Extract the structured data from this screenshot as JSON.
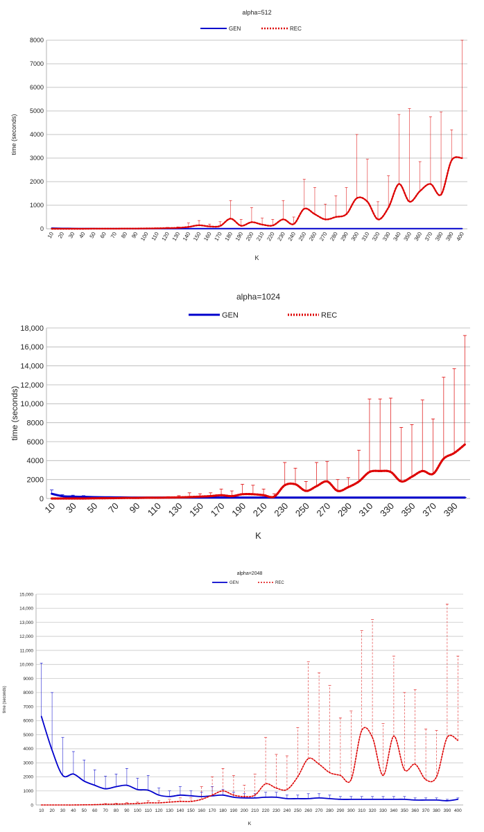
{
  "chart_data": [
    {
      "type": "line",
      "title": "alpha=512",
      "xlabel": "K",
      "ylabel": "time (seconds)",
      "categories": [
        10,
        20,
        30,
        40,
        50,
        60,
        70,
        80,
        90,
        100,
        110,
        120,
        130,
        140,
        150,
        160,
        170,
        180,
        190,
        200,
        210,
        220,
        230,
        240,
        250,
        260,
        270,
        280,
        290,
        300,
        310,
        320,
        330,
        340,
        350,
        360,
        370,
        380,
        390,
        400
      ],
      "ylim": [
        0,
        8000
      ],
      "yticks": [
        0,
        1000,
        2000,
        3000,
        4000,
        5000,
        6000,
        7000,
        8000
      ],
      "ytick_labels": [
        "0",
        "1000",
        "2000",
        "3000",
        "4000",
        "5000",
        "6000",
        "7000",
        "8000"
      ],
      "legend": "top-center",
      "grid": true,
      "series": [
        {
          "name": "GEN",
          "color": "#0000cc",
          "values": [
            30,
            20,
            15,
            10,
            10,
            8,
            8,
            8,
            8,
            8,
            8,
            8,
            8,
            8,
            8,
            8,
            8,
            8,
            8,
            8,
            8,
            8,
            8,
            8,
            8,
            8,
            8,
            8,
            8,
            8,
            8,
            8,
            8,
            8,
            8,
            8,
            8,
            8,
            8,
            8
          ]
        },
        {
          "name": "REC",
          "color": "#dd0000",
          "values": [
            0,
            0,
            0,
            0,
            5,
            5,
            5,
            10,
            10,
            15,
            20,
            30,
            40,
            80,
            150,
            100,
            120,
            430,
            130,
            280,
            180,
            140,
            400,
            200,
            850,
            620,
            400,
            500,
            620,
            1300,
            1150,
            400,
            900,
            1900,
            1150,
            1600,
            1900,
            1450,
            2900,
            3000
          ],
          "err_upper": [
            0,
            0,
            0,
            0,
            10,
            10,
            10,
            20,
            20,
            30,
            40,
            60,
            80,
            250,
            350,
            200,
            300,
            1200,
            400,
            900,
            450,
            400,
            1200,
            500,
            2100,
            1750,
            1050,
            1400,
            1750,
            4000,
            2950,
            1150,
            2250,
            4850,
            5100,
            2850,
            4750,
            4950,
            4200,
            8000
          ]
        }
      ]
    },
    {
      "type": "line",
      "title": "alpha=1024",
      "xlabel": "K",
      "ylabel": "time (seconds)",
      "categories": [
        10,
        20,
        30,
        40,
        50,
        60,
        70,
        80,
        90,
        100,
        110,
        120,
        130,
        140,
        150,
        160,
        170,
        180,
        190,
        200,
        210,
        220,
        230,
        240,
        250,
        260,
        270,
        280,
        290,
        300,
        310,
        320,
        330,
        340,
        350,
        360,
        370,
        380,
        390,
        400
      ],
      "tick_labels": [
        "10",
        "30",
        "50",
        "70",
        "90",
        "110",
        "130",
        "150",
        "170",
        "190",
        "210",
        "230",
        "250",
        "270",
        "290",
        "310",
        "330",
        "350",
        "370",
        "390"
      ],
      "ylim": [
        0,
        18000
      ],
      "yticks": [
        0,
        2000,
        4000,
        6000,
        8000,
        10000,
        12000,
        14000,
        16000,
        18000
      ],
      "ytick_labels": [
        "0",
        "2000",
        "4000",
        "6000",
        "8000",
        "10,000",
        "12,000",
        "14,000",
        "16,000",
        "18,000"
      ],
      "legend": "top-center",
      "grid": true,
      "series": [
        {
          "name": "GEN",
          "color": "#0000cc",
          "values": [
            500,
            250,
            200,
            180,
            150,
            130,
            120,
            110,
            100,
            100,
            100,
            100,
            100,
            100,
            100,
            100,
            100,
            100,
            100,
            100,
            100,
            100,
            100,
            100,
            100,
            100,
            100,
            100,
            100,
            100,
            100,
            100,
            100,
            100,
            100,
            100,
            100,
            100,
            100,
            100
          ],
          "err_upper": [
            900,
            400,
            350,
            300,
            200,
            150,
            130,
            120,
            110,
            110,
            110,
            110,
            110,
            110,
            110,
            110,
            110,
            110,
            110,
            110,
            110,
            110,
            110,
            110,
            110,
            110,
            110,
            110,
            110,
            110,
            110,
            110,
            110,
            110,
            110,
            110,
            110,
            110,
            110,
            110
          ]
        },
        {
          "name": "REC",
          "color": "#dd0000",
          "values": [
            0,
            0,
            0,
            0,
            20,
            30,
            40,
            60,
            60,
            80,
            80,
            100,
            120,
            150,
            200,
            250,
            350,
            250,
            450,
            450,
            350,
            200,
            1400,
            1500,
            800,
            1300,
            1800,
            800,
            1200,
            1800,
            2800,
            2900,
            2800,
            1800,
            2300,
            2900,
            2600,
            4200,
            4800,
            5700
          ],
          "err_upper": [
            0,
            0,
            0,
            0,
            40,
            60,
            80,
            120,
            120,
            160,
            160,
            200,
            300,
            600,
            500,
            600,
            1000,
            800,
            1500,
            1400,
            1000,
            500,
            3800,
            3200,
            1800,
            3800,
            3900,
            2000,
            2200,
            5100,
            10500,
            10500,
            10600,
            7500,
            7800,
            10400,
            8400,
            12800,
            13700,
            17200
          ]
        }
      ]
    },
    {
      "type": "line",
      "title": "alpha=2048",
      "xlabel": "K",
      "ylabel": "time (seconds)",
      "categories": [
        10,
        20,
        30,
        40,
        50,
        60,
        70,
        80,
        90,
        100,
        110,
        120,
        130,
        140,
        150,
        160,
        170,
        180,
        190,
        200,
        210,
        220,
        230,
        240,
        250,
        260,
        270,
        280,
        290,
        300,
        310,
        320,
        330,
        340,
        350,
        360,
        370,
        380,
        390,
        400
      ],
      "ylim": [
        0,
        15000
      ],
      "yticks": [
        0,
        1000,
        2000,
        3000,
        4000,
        5000,
        6000,
        7000,
        8000,
        9000,
        10000,
        11000,
        12000,
        13000,
        14000,
        15000
      ],
      "ytick_labels": [
        "0",
        "1000",
        "2000",
        "3000",
        "4000",
        "5000",
        "6000",
        "7000",
        "8000",
        "9000",
        "10,000",
        "11,000",
        "12,000",
        "13,000",
        "14,000",
        "15,000"
      ],
      "legend": "top-center",
      "grid": true,
      "series": [
        {
          "name": "GEN",
          "color": "#0000cc",
          "values": [
            6300,
            3900,
            2100,
            2200,
            1700,
            1400,
            1150,
            1300,
            1400,
            1100,
            1050,
            700,
            600,
            700,
            650,
            600,
            650,
            700,
            550,
            500,
            500,
            550,
            550,
            450,
            450,
            450,
            500,
            450,
            400,
            400,
            400,
            400,
            400,
            400,
            400,
            350,
            350,
            350,
            300,
            400
          ],
          "err_upper": [
            10100,
            8000,
            4800,
            3800,
            3200,
            2500,
            2050,
            2200,
            2600,
            1900,
            2100,
            1200,
            1000,
            1300,
            1000,
            900,
            1300,
            1100,
            900,
            800,
            800,
            900,
            900,
            700,
            700,
            800,
            800,
            700,
            600,
            600,
            600,
            600,
            600,
            600,
            600,
            500,
            500,
            500,
            400,
            500
          ]
        },
        {
          "name": "REC",
          "color": "#dd0000",
          "values": [
            0,
            0,
            0,
            0,
            10,
            20,
            50,
            60,
            80,
            100,
            150,
            150,
            200,
            250,
            250,
            400,
            700,
            1000,
            700,
            600,
            700,
            1500,
            1200,
            1100,
            2000,
            3300,
            2900,
            2300,
            2100,
            1800,
            5300,
            4800,
            2100,
            4900,
            2500,
            2900,
            1800,
            2000,
            4800,
            4600
          ],
          "err_upper": [
            0,
            0,
            0,
            0,
            20,
            40,
            100,
            120,
            160,
            200,
            300,
            300,
            400,
            500,
            500,
            1300,
            2000,
            2600,
            2100,
            1400,
            2200,
            4800,
            3600,
            3500,
            5500,
            10200,
            9400,
            8500,
            6200,
            6700,
            12400,
            13200,
            5800,
            10600,
            8000,
            8200,
            5400,
            5300,
            14300,
            10600
          ]
        }
      ]
    }
  ]
}
